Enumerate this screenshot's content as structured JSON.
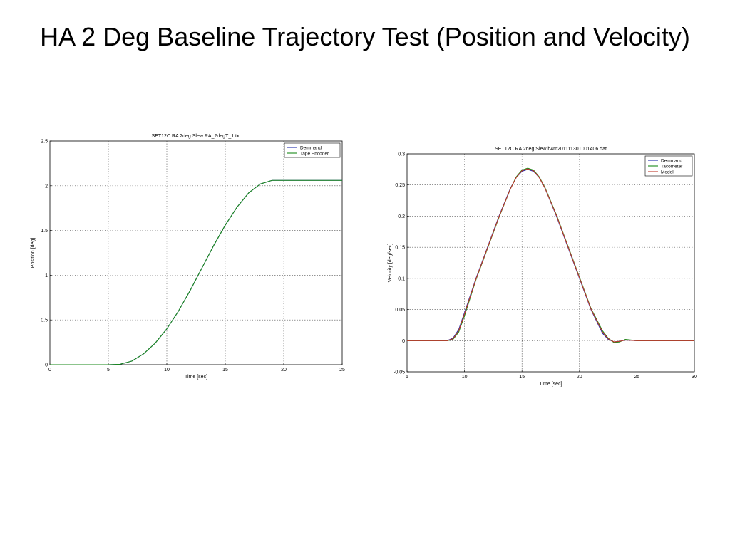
{
  "slide": {
    "title": "HA 2 Deg Baseline Trajectory Test (Position and Velocity)"
  },
  "chart_data": [
    {
      "type": "line",
      "title": "SET12C RA 2deg Slew  RA_2degT_1.txt",
      "xlabel": "Time [sec]",
      "ylabel": "Position [deg]",
      "xlim": [
        0,
        25
      ],
      "ylim": [
        0,
        2.5
      ],
      "xticks": [
        0,
        5,
        10,
        15,
        20,
        25
      ],
      "yticks": [
        0,
        0.5,
        1,
        1.5,
        2,
        2.5
      ],
      "grid": true,
      "legend": "top-right",
      "series": [
        {
          "name": "Demmand",
          "color": "#1f2aa8",
          "x": [
            0,
            5,
            6,
            7,
            8,
            9,
            10,
            11,
            12,
            13,
            14,
            15,
            16,
            17,
            18,
            19,
            20,
            25
          ],
          "y": [
            0,
            0,
            0.005,
            0.04,
            0.12,
            0.24,
            0.4,
            0.6,
            0.83,
            1.08,
            1.33,
            1.56,
            1.76,
            1.92,
            2.02,
            2.06,
            2.06,
            2.06
          ]
        },
        {
          "name": "Tape Encoder",
          "color": "#1a8a1a",
          "x": [
            0,
            5,
            6,
            7,
            8,
            9,
            10,
            11,
            12,
            13,
            14,
            15,
            16,
            17,
            18,
            19,
            20,
            25
          ],
          "y": [
            0,
            0,
            0.005,
            0.04,
            0.12,
            0.24,
            0.4,
            0.6,
            0.83,
            1.08,
            1.33,
            1.56,
            1.76,
            1.92,
            2.02,
            2.06,
            2.06,
            2.06
          ]
        }
      ]
    },
    {
      "type": "line",
      "title": "SET12C RA 2deg Slew  b4m20111130T001406.dat",
      "xlabel": "Time [sec]",
      "ylabel": "Velocity [deg/sec]",
      "xlim": [
        5,
        30
      ],
      "ylim": [
        -0.05,
        0.3
      ],
      "xticks": [
        5,
        10,
        15,
        20,
        25,
        30
      ],
      "yticks": [
        -0.05,
        0,
        0.05,
        0.1,
        0.15,
        0.2,
        0.25,
        0.3
      ],
      "grid": true,
      "legend": "top-right",
      "series": [
        {
          "name": "Demmand",
          "color": "#1f2aa8",
          "x": [
            5,
            8.5,
            9,
            9.5,
            10,
            11,
            12,
            13,
            14,
            14.5,
            15,
            15.5,
            16,
            16.5,
            17,
            18,
            19,
            20,
            21,
            22,
            22.5,
            23,
            23.5,
            24,
            25,
            26,
            27,
            28,
            30
          ],
          "y": [
            0,
            0,
            0.004,
            0.018,
            0.045,
            0.1,
            0.15,
            0.2,
            0.245,
            0.262,
            0.272,
            0.275,
            0.272,
            0.262,
            0.245,
            0.2,
            0.15,
            0.1,
            0.05,
            0.012,
            0.002,
            -0.002,
            -0.001,
            0.001,
            0,
            0,
            0,
            0,
            0
          ]
        },
        {
          "name": "Tacometer",
          "color": "#1a8a1a",
          "x": [
            5,
            8.5,
            9,
            9.5,
            10,
            11,
            12,
            13,
            14,
            14.5,
            15,
            15.5,
            16,
            16.5,
            17,
            18,
            19,
            20,
            21,
            22,
            22.5,
            23,
            23.5,
            24,
            25,
            26,
            27,
            28,
            30
          ],
          "y": [
            0,
            0,
            0.002,
            0.014,
            0.04,
            0.098,
            0.148,
            0.198,
            0.244,
            0.263,
            0.274,
            0.277,
            0.274,
            0.263,
            0.246,
            0.202,
            0.152,
            0.102,
            0.052,
            0.016,
            0.004,
            -0.003,
            -0.002,
            0.002,
            0,
            0,
            0,
            0,
            0
          ]
        },
        {
          "name": "Model",
          "color": "#c03a2b",
          "x": [
            5,
            8.5,
            9,
            9.5,
            10,
            11,
            12,
            13,
            14,
            14.5,
            15,
            15.5,
            16,
            16.5,
            17,
            18,
            19,
            20,
            21,
            22,
            22.5,
            23,
            23.5,
            24,
            25,
            26,
            27,
            28,
            30
          ],
          "y": [
            0,
            0,
            0.003,
            0.016,
            0.043,
            0.099,
            0.149,
            0.199,
            0.244,
            0.262,
            0.273,
            0.276,
            0.273,
            0.262,
            0.245,
            0.201,
            0.151,
            0.101,
            0.051,
            0.014,
            0.003,
            -0.002,
            -0.001,
            0.001,
            0,
            0,
            0,
            0,
            0
          ]
        }
      ]
    }
  ]
}
